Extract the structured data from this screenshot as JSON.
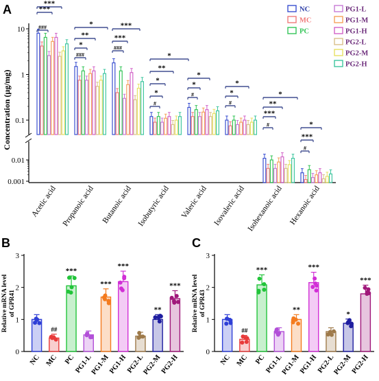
{
  "chart_data": [
    {
      "panel": "A",
      "type": "bar",
      "ylabel": "Concentration (μg/mg)",
      "yscale": "log (broken axis)",
      "yticks": [
        "10",
        "1",
        "0.1",
        "0.01",
        "0.001"
      ],
      "categories": [
        "Acetic acid",
        "Propanoic acid",
        "Butanoic acid",
        "Isobutyric acid",
        "Valeric acid",
        "Isovaleric acid",
        "Isohexanoic acid",
        "Hexanoic acid"
      ],
      "legend_position": "top-right",
      "series": [
        {
          "name": "NC",
          "color": "#3a4fd0",
          "values": [
            8.0,
            1.5,
            1.8,
            0.12,
            0.19,
            0.1,
            0.012,
            0.0025
          ]
        },
        {
          "name": "MC",
          "color": "#f07b7b",
          "values": [
            4.2,
            0.75,
            0.4,
            0.09,
            0.12,
            0.075,
            0.004,
            0.0012
          ]
        },
        {
          "name": "PC",
          "color": "#33c457",
          "values": [
            6.5,
            1.2,
            1.2,
            0.12,
            0.17,
            0.1,
            0.01,
            0.0035
          ]
        },
        {
          "name": "PG1-L",
          "color": "#c77ad6",
          "values": [
            2.6,
            0.75,
            0.3,
            0.09,
            0.12,
            0.08,
            0.004,
            0.0015
          ]
        },
        {
          "name": "PG1-M",
          "color": "#f4a25c",
          "values": [
            5.3,
            1.05,
            0.6,
            0.11,
            0.15,
            0.09,
            0.008,
            0.002
          ]
        },
        {
          "name": "PG1-H",
          "color": "#d262c8",
          "values": [
            6.5,
            1.2,
            1.1,
            0.12,
            0.17,
            0.1,
            0.014,
            0.0025
          ]
        },
        {
          "name": "PG2-L",
          "color": "#d8c08a",
          "values": [
            2.5,
            0.55,
            0.28,
            0.08,
            0.12,
            0.08,
            0.004,
            0.0013
          ]
        },
        {
          "name": "PG2-M",
          "color": "#e6e064",
          "values": [
            3.3,
            0.75,
            0.5,
            0.1,
            0.14,
            0.09,
            0.006,
            0.0017
          ]
        },
        {
          "name": "PG2-H",
          "color": "#3fc6a0",
          "values": [
            4.7,
            1.05,
            0.7,
            0.12,
            0.16,
            0.1,
            0.012,
            0.0022
          ]
        }
      ],
      "annotations": [
        {
          "group": "Acetic acid",
          "labels": [
            "###",
            "***",
            "***"
          ]
        },
        {
          "group": "Propanoic acid",
          "labels": [
            "###",
            "*",
            "**",
            "*"
          ]
        },
        {
          "group": "Butanoic acid",
          "labels": [
            "###",
            "***",
            "***"
          ]
        },
        {
          "group": "Isobutyric acid",
          "labels": [
            "#",
            "*",
            "*",
            "**",
            "*"
          ]
        },
        {
          "group": "Valeric acid",
          "labels": [
            "#",
            "*",
            "*"
          ]
        },
        {
          "group": "Isovaleric acid",
          "labels": [
            "#",
            "*",
            "*"
          ]
        },
        {
          "group": "Isohexanoic acid",
          "labels": [
            "#",
            "***",
            "**",
            "*"
          ]
        },
        {
          "group": "Hexanoic acid",
          "labels": [
            "#",
            "***",
            "*"
          ]
        }
      ]
    },
    {
      "panel": "B",
      "type": "bar",
      "ylabel_line1": "Relative mRNA level",
      "ylabel_line2": "of GPR41",
      "ylim": [
        0,
        3
      ],
      "yticks": [
        "0",
        "1",
        "2",
        "3"
      ],
      "categories": [
        "NC",
        "MC",
        "PC",
        "PG1-L",
        "PG1-M",
        "PG1-H",
        "PG2-L",
        "PG2-M",
        "PG2-H"
      ],
      "colors": [
        "#2e3fd6",
        "#e83a3a",
        "#22c43a",
        "#b24fd8",
        "#f47b1e",
        "#d12fd6",
        "#9e7a4a",
        "#1f1ea0",
        "#a0187a"
      ],
      "values": [
        1.0,
        0.42,
        2.05,
        0.52,
        1.7,
        2.18,
        0.48,
        1.0,
        1.65
      ],
      "sig": [
        "",
        "##",
        "***",
        "",
        "***",
        "***",
        "",
        "**",
        "***"
      ]
    },
    {
      "panel": "C",
      "type": "bar",
      "ylabel_line1": "Relative mRNA level",
      "ylabel_line2": "of GPR43",
      "ylim": [
        0,
        3
      ],
      "yticks": [
        "0",
        "1",
        "2",
        "3"
      ],
      "categories": [
        "NC",
        "MC",
        "PC",
        "PG1-L",
        "PG1-M",
        "PG1-H",
        "PG2-L",
        "PG2-M",
        "PG2-H"
      ],
      "colors": [
        "#2e3fd6",
        "#e83a3a",
        "#22c43a",
        "#b24fd8",
        "#f47b1e",
        "#d12fd6",
        "#9e7a4a",
        "#1f1ea0",
        "#a0187a"
      ],
      "values": [
        1.0,
        0.38,
        2.08,
        0.62,
        1.0,
        2.15,
        0.62,
        0.88,
        1.8
      ],
      "sig": [
        "",
        "##",
        "***",
        "",
        "**",
        "***",
        "",
        "*",
        "***"
      ]
    }
  ]
}
